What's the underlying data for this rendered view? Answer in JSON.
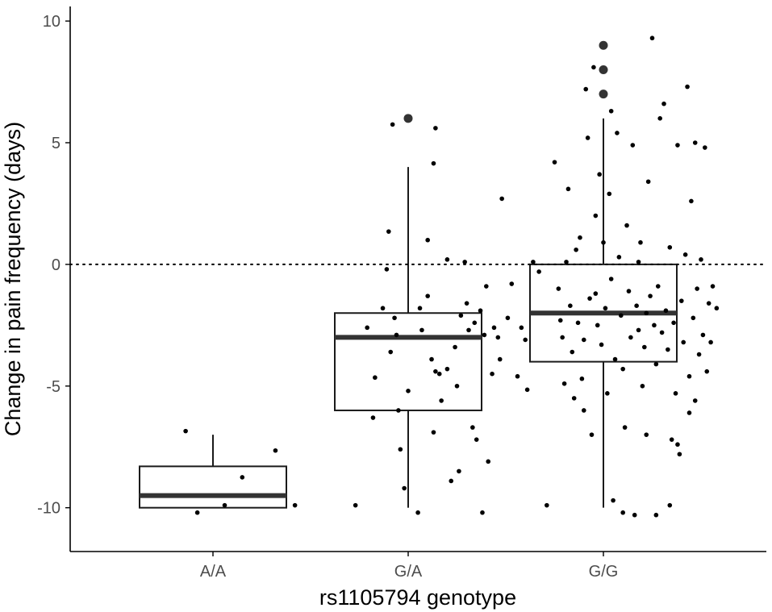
{
  "chart_data": {
    "type": "boxplot",
    "xlabel": "rs1105794 genotype",
    "ylabel": "Change in pain frequency (days)",
    "categories": [
      "A/A",
      "G/A",
      "G/G"
    ],
    "ylim": [
      -11.8,
      10.6
    ],
    "yticks": [
      -10,
      -5,
      0,
      5,
      10
    ],
    "ytick_labels": [
      "-10",
      "-5",
      "0",
      "5",
      "10"
    ],
    "reference_line": {
      "y": 0,
      "style": "dotted"
    },
    "grid": false,
    "colors": {
      "box_stroke": "#1a1a1a",
      "median": "#333333",
      "points": "#000000",
      "outliers": "#333333",
      "axis": "#000000"
    },
    "boxes": [
      {
        "category": "A/A",
        "whisker_low": -10,
        "q1": -10,
        "median": -9.5,
        "q3": -8.3,
        "whisker_high": -7,
        "outliers": []
      },
      {
        "category": "G/A",
        "whisker_low": -10,
        "q1": -6,
        "median": -3,
        "q3": -2,
        "whisker_high": 4,
        "outliers": [
          6
        ]
      },
      {
        "category": "G/G",
        "whisker_low": -10,
        "q1": -4,
        "median": -2,
        "q3": 0,
        "whisker_high": 6,
        "outliers": [
          7,
          8,
          9
        ]
      }
    ],
    "jitter_points": [
      {
        "x": 0.86,
        "y": -6.85
      },
      {
        "x": 0.92,
        "y": -10.2
      },
      {
        "x": 1.06,
        "y": -9.9
      },
      {
        "x": 1.15,
        "y": -8.75
      },
      {
        "x": 1.32,
        "y": -7.65
      },
      {
        "x": 1.42,
        "y": -9.9
      },
      {
        "x": 1.73,
        "y": -9.9
      },
      {
        "x": 1.79,
        "y": -2.6
      },
      {
        "x": 1.82,
        "y": -6.3
      },
      {
        "x": 1.83,
        "y": -4.65
      },
      {
        "x": 1.87,
        "y": -1.8
      },
      {
        "x": 1.89,
        "y": -0.2
      },
      {
        "x": 1.9,
        "y": 1.35
      },
      {
        "x": 1.91,
        "y": -3.6
      },
      {
        "x": 1.92,
        "y": 5.75
      },
      {
        "x": 1.93,
        "y": -2.2
      },
      {
        "x": 1.95,
        "y": -6.0
      },
      {
        "x": 1.96,
        "y": -7.6
      },
      {
        "x": 1.98,
        "y": -9.2
      },
      {
        "x": 2.0,
        "y": -5.2
      },
      {
        "x": 2.05,
        "y": -10.2
      },
      {
        "x": 2.07,
        "y": -2.7
      },
      {
        "x": 2.1,
        "y": -1.3
      },
      {
        "x": 2.12,
        "y": -3.9
      },
      {
        "x": 2.13,
        "y": -6.9
      },
      {
        "x": 2.14,
        "y": -4.4
      },
      {
        "x": 2.16,
        "y": -4.5
      },
      {
        "x": 2.17,
        "y": -5.6
      },
      {
        "x": 2.2,
        "y": -4.3
      },
      {
        "x": 2.22,
        "y": -8.9
      },
      {
        "x": 2.25,
        "y": -5.0
      },
      {
        "x": 2.26,
        "y": -8.5
      },
      {
        "x": 2.27,
        "y": -2.1
      },
      {
        "x": 2.29,
        "y": 0.1
      },
      {
        "x": 2.31,
        "y": -2.7
      },
      {
        "x": 2.33,
        "y": -6.7
      },
      {
        "x": 2.34,
        "y": -2.4
      },
      {
        "x": 2.35,
        "y": -7.2
      },
      {
        "x": 2.37,
        "y": -1.9
      },
      {
        "x": 2.38,
        "y": -10.2
      },
      {
        "x": 2.39,
        "y": -2.9
      },
      {
        "x": 2.4,
        "y": -0.9
      },
      {
        "x": 2.41,
        "y": -8.1
      },
      {
        "x": 2.43,
        "y": -4.5
      },
      {
        "x": 2.44,
        "y": -2.6
      },
      {
        "x": 2.46,
        "y": -3.0
      },
      {
        "x": 2.47,
        "y": -3.9
      },
      {
        "x": 2.48,
        "y": 2.7
      },
      {
        "x": 2.51,
        "y": -2.2
      },
      {
        "x": 2.53,
        "y": -0.8
      },
      {
        "x": 2.56,
        "y": -4.6
      },
      {
        "x": 2.58,
        "y": -2.6
      },
      {
        "x": 2.6,
        "y": -3.1
      },
      {
        "x": 2.61,
        "y": -5.15
      },
      {
        "x": 2.64,
        "y": 0.1
      },
      {
        "x": 2.67,
        "y": -0.3
      },
      {
        "x": 2.1,
        "y": 1.0
      },
      {
        "x": 2.13,
        "y": 4.15
      },
      {
        "x": 2.14,
        "y": 5.6
      },
      {
        "x": 2.2,
        "y": 0.2
      },
      {
        "x": 2.06,
        "y": -1.8
      },
      {
        "x": 2.24,
        "y": -3.4
      },
      {
        "x": 2.3,
        "y": -1.6
      },
      {
        "x": 1.94,
        "y": -2.9
      },
      {
        "x": 2.71,
        "y": -9.9
      },
      {
        "x": 2.75,
        "y": 4.2
      },
      {
        "x": 2.77,
        "y": -1.0
      },
      {
        "x": 2.78,
        "y": -2.3
      },
      {
        "x": 2.79,
        "y": -3.0
      },
      {
        "x": 2.8,
        "y": -4.9
      },
      {
        "x": 2.81,
        "y": 0.1
      },
      {
        "x": 2.82,
        "y": 3.1
      },
      {
        "x": 2.83,
        "y": -1.7
      },
      {
        "x": 2.84,
        "y": -3.6
      },
      {
        "x": 2.85,
        "y": -5.5
      },
      {
        "x": 2.86,
        "y": 0.6
      },
      {
        "x": 2.87,
        "y": -2.4
      },
      {
        "x": 2.88,
        "y": 1.1
      },
      {
        "x": 2.89,
        "y": -4.7
      },
      {
        "x": 2.9,
        "y": -6.0
      },
      {
        "x": 2.91,
        "y": 7.2
      },
      {
        "x": 2.92,
        "y": 5.2
      },
      {
        "x": 2.93,
        "y": -1.4
      },
      {
        "x": 2.94,
        "y": -7.0
      },
      {
        "x": 2.95,
        "y": 8.1
      },
      {
        "x": 2.96,
        "y": 2.0
      },
      {
        "x": 2.97,
        "y": -2.5
      },
      {
        "x": 2.98,
        "y": 3.7
      },
      {
        "x": 2.99,
        "y": -3.3
      },
      {
        "x": 3.0,
        "y": 0.9
      },
      {
        "x": 3.01,
        "y": -1.8
      },
      {
        "x": 3.02,
        "y": -5.3
      },
      {
        "x": 3.03,
        "y": 2.9
      },
      {
        "x": 3.04,
        "y": -0.6
      },
      {
        "x": 3.05,
        "y": -9.7
      },
      {
        "x": 3.06,
        "y": -3.9
      },
      {
        "x": 3.07,
        "y": 5.4
      },
      {
        "x": 3.08,
        "y": 0.3
      },
      {
        "x": 3.09,
        "y": -2.1
      },
      {
        "x": 3.1,
        "y": -4.3
      },
      {
        "x": 3.11,
        "y": -6.7
      },
      {
        "x": 3.12,
        "y": 1.6
      },
      {
        "x": 3.13,
        "y": -1.1
      },
      {
        "x": 3.14,
        "y": -3.0
      },
      {
        "x": 3.15,
        "y": 4.9
      },
      {
        "x": 3.16,
        "y": -10.3
      },
      {
        "x": 3.17,
        "y": -1.7
      },
      {
        "x": 3.18,
        "y": -2.7
      },
      {
        "x": 3.19,
        "y": 0.9
      },
      {
        "x": 3.2,
        "y": -5.0
      },
      {
        "x": 3.21,
        "y": -3.4
      },
      {
        "x": 3.22,
        "y": -2.0
      },
      {
        "x": 3.23,
        "y": 3.4
      },
      {
        "x": 3.24,
        "y": -1.3
      },
      {
        "x": 3.25,
        "y": 9.3
      },
      {
        "x": 3.26,
        "y": -2.5
      },
      {
        "x": 3.27,
        "y": -4.1
      },
      {
        "x": 3.28,
        "y": -0.9
      },
      {
        "x": 3.29,
        "y": 6.0
      },
      {
        "x": 3.3,
        "y": -2.8
      },
      {
        "x": 3.31,
        "y": 6.6
      },
      {
        "x": 3.32,
        "y": -1.9
      },
      {
        "x": 3.33,
        "y": -3.5
      },
      {
        "x": 3.34,
        "y": 0.7
      },
      {
        "x": 3.35,
        "y": -7.2
      },
      {
        "x": 3.36,
        "y": -2.4
      },
      {
        "x": 3.37,
        "y": -5.3
      },
      {
        "x": 3.38,
        "y": 4.9
      },
      {
        "x": 3.39,
        "y": -7.8
      },
      {
        "x": 3.4,
        "y": -1.5
      },
      {
        "x": 3.41,
        "y": -3.2
      },
      {
        "x": 3.42,
        "y": 0.4
      },
      {
        "x": 3.43,
        "y": 7.3
      },
      {
        "x": 3.44,
        "y": -4.6
      },
      {
        "x": 3.45,
        "y": 2.6
      },
      {
        "x": 3.46,
        "y": -2.2
      },
      {
        "x": 3.47,
        "y": -5.6
      },
      {
        "x": 3.48,
        "y": -1.0
      },
      {
        "x": 3.49,
        "y": -3.7
      },
      {
        "x": 3.5,
        "y": 0.2
      },
      {
        "x": 3.51,
        "y": -2.9
      },
      {
        "x": 3.52,
        "y": 4.8
      },
      {
        "x": 3.53,
        "y": -4.4
      },
      {
        "x": 3.54,
        "y": -1.6
      },
      {
        "x": 3.55,
        "y": -3.2
      },
      {
        "x": 3.56,
        "y": -0.9
      },
      {
        "x": 3.58,
        "y": -1.8
      },
      {
        "x": 3.04,
        "y": 6.3
      },
      {
        "x": 3.22,
        "y": -7.0
      },
      {
        "x": 3.1,
        "y": -10.2
      },
      {
        "x": 3.27,
        "y": -10.3
      },
      {
        "x": 3.34,
        "y": -9.9
      },
      {
        "x": 3.38,
        "y": -7.4
      },
      {
        "x": 2.9,
        "y": -3.1
      },
      {
        "x": 2.96,
        "y": -1.2
      },
      {
        "x": 3.18,
        "y": 0.1
      },
      {
        "x": 3.44,
        "y": -6.1
      },
      {
        "x": 3.47,
        "y": 5.0
      }
    ]
  }
}
